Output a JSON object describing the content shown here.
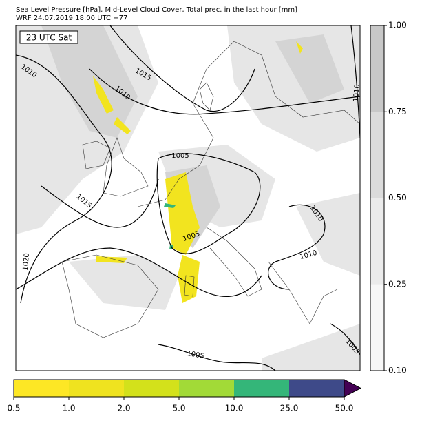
{
  "header": {
    "line1": "Sea Level Pressure [hPa], Mid-Level Cloud Cover, Total prec. in the last hour [mm]",
    "line2": "WRF 24.07.2019 18:00 UTC +77"
  },
  "map": {
    "time_label": "23 UTC Sat",
    "isobar_labels": [
      1010,
      1015,
      1010,
      1005,
      1015,
      1010,
      1005,
      1010,
      1020,
      1005,
      1005,
      1010
    ]
  },
  "cloud_colorbar": {
    "ticks": [
      {
        "value": 0.1,
        "label": "0.10"
      },
      0.25,
      {
        "value": 0.5,
        "label": "0.50"
      },
      0.75,
      {
        "value": 1.0,
        "label": "1.00"
      }
    ],
    "colors": [
      "#f7f7f7",
      "#ebebeb",
      "#dbdbdb",
      "#c8c8c8"
    ]
  },
  "precip_colorbar": {
    "ticks": [
      0.5,
      {
        "value": 1.0,
        "label": "1.0"
      },
      {
        "value": 2.0,
        "label": "2.0"
      },
      {
        "value": 5.0,
        "label": "5.0"
      },
      {
        "value": 10.0,
        "label": "10.0"
      },
      {
        "value": 25.0,
        "label": "25.0"
      },
      {
        "value": 50.0,
        "label": "50.0"
      }
    ],
    "colors": [
      "#fde725",
      "#efe31f",
      "#d3e11b",
      "#a2da37",
      "#34b679",
      "#3e4a89"
    ],
    "extend_color": "#440154"
  }
}
